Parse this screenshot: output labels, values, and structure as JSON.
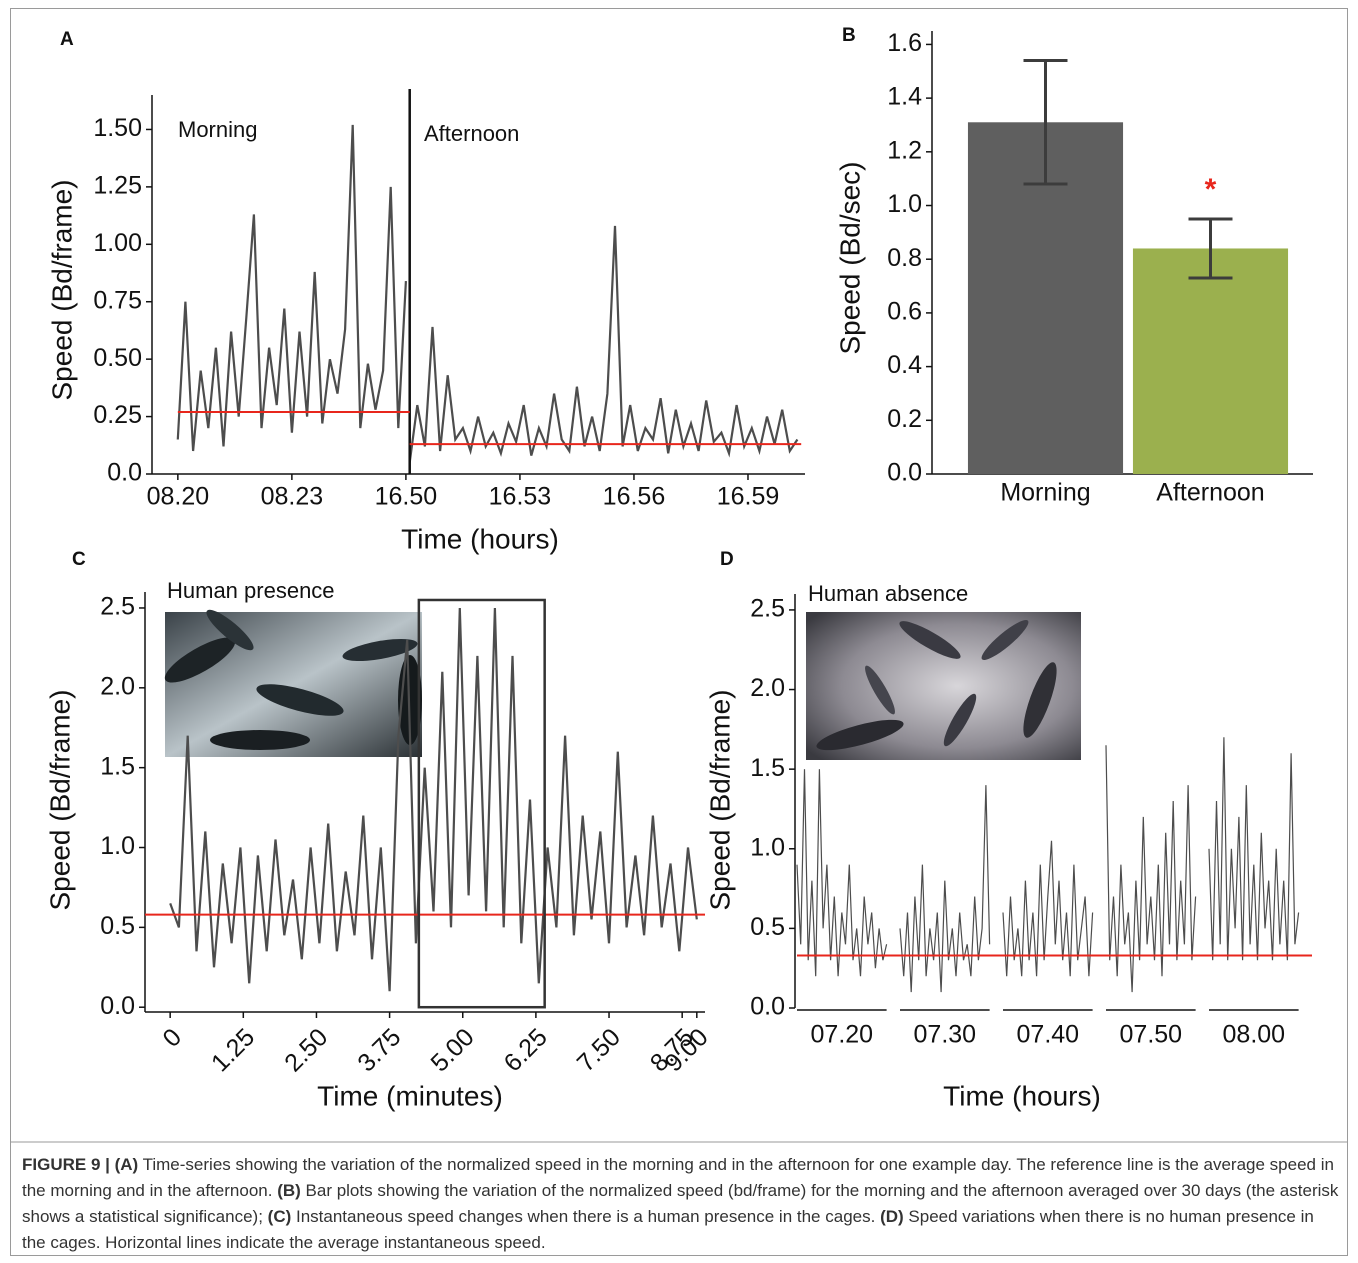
{
  "chart_data": [
    {
      "type": "line",
      "panel_label": "A",
      "ylabel": "Speed (Bd/frame)",
      "xlabel": "Time (hours)",
      "annotations": [
        "Morning",
        "Afternoon"
      ],
      "xlim": [
        -0.68,
        16.5
      ],
      "ylim": [
        0,
        1.65
      ],
      "xticks": [
        {
          "value": 0,
          "label": "08.20"
        },
        {
          "value": 3,
          "label": "08.23"
        },
        {
          "value": 6,
          "label": "16.50"
        },
        {
          "value": 9,
          "label": "16.53"
        },
        {
          "value": 12,
          "label": "16.56"
        },
        {
          "value": 15,
          "label": "16.59"
        }
      ],
      "yticks": [
        {
          "value": 0,
          "label": "0.0"
        },
        0.25,
        {
          "value": 0.5,
          "label": "0.50"
        },
        0.75,
        {
          "value": 1,
          "label": "1.00"
        },
        1.25,
        {
          "value": 1.5,
          "label": "1.50"
        }
      ],
      "divider_x": 6.1,
      "series": [
        {
          "color": "#4d4d4d",
          "x": [
            0,
            0.2,
            0.4,
            0.6,
            0.8,
            1.0,
            1.2,
            1.4,
            1.6,
            1.8,
            2.0,
            2.2,
            2.4,
            2.6,
            2.8,
            3.0,
            3.2,
            3.4,
            3.6,
            3.8,
            4.0,
            4.2,
            4.4,
            4.6,
            4.8,
            5.0,
            5.2,
            5.4,
            5.6,
            5.8,
            6.0
          ],
          "values": [
            0.15,
            0.75,
            0.1,
            0.45,
            0.2,
            0.55,
            0.12,
            0.62,
            0.25,
            0.68,
            1.13,
            0.2,
            0.55,
            0.3,
            0.72,
            0.18,
            0.62,
            0.25,
            0.88,
            0.22,
            0.5,
            0.35,
            0.63,
            1.52,
            0.2,
            0.48,
            0.28,
            0.45,
            1.25,
            0.2,
            0.84
          ]
        },
        {
          "color": "#4d4d4d",
          "x": [
            6.1,
            6.3,
            6.5,
            6.7,
            6.9,
            7.1,
            7.3,
            7.5,
            7.7,
            7.9,
            8.1,
            8.3,
            8.5,
            8.7,
            8.9,
            9.1,
            9.3,
            9.5,
            9.7,
            9.9,
            10.1,
            10.3,
            10.5,
            10.7,
            10.9,
            11.1,
            11.3,
            11.5,
            11.7,
            11.9,
            12.1,
            12.3,
            12.5,
            12.7,
            12.9,
            13.1,
            13.3,
            13.5,
            13.7,
            13.9,
            14.1,
            14.3,
            14.5,
            14.7,
            14.9,
            15.1,
            15.3,
            15.5,
            15.7,
            15.9,
            16.1,
            16.3
          ],
          "values": [
            0.05,
            0.3,
            0.12,
            0.64,
            0.1,
            0.43,
            0.15,
            0.2,
            0.1,
            0.25,
            0.12,
            0.18,
            0.09,
            0.22,
            0.14,
            0.3,
            0.08,
            0.2,
            0.12,
            0.35,
            0.15,
            0.1,
            0.38,
            0.12,
            0.25,
            0.1,
            0.35,
            1.08,
            0.12,
            0.3,
            0.1,
            0.2,
            0.15,
            0.33,
            0.09,
            0.28,
            0.12,
            0.22,
            0.1,
            0.32,
            0.14,
            0.18,
            0.09,
            0.3,
            0.12,
            0.2,
            0.1,
            0.25,
            0.13,
            0.28,
            0.1,
            0.15
          ]
        }
      ],
      "reference_lines": [
        {
          "value": 0.27,
          "x": [
            0,
            6.1
          ],
          "color": "#e8261c"
        },
        {
          "value": 0.13,
          "x": [
            6.1,
            16.4
          ],
          "color": "#e8261c"
        }
      ]
    },
    {
      "type": "bar",
      "panel_label": "B",
      "ylabel": "Speed (Bd/sec)",
      "categories": [
        "Morning",
        "Afternoon"
      ],
      "values": [
        1.31,
        0.84
      ],
      "errors": [
        0.23,
        0.11
      ],
      "colors": [
        "#5f5f5f",
        "#9bb04e"
      ],
      "error_color": "#3c3c3c",
      "ylim": [
        0,
        1.65
      ],
      "yticks": [
        {
          "value": 0,
          "label": "0.0"
        },
        0.2,
        0.4,
        0.6,
        0.8,
        {
          "value": 1,
          "label": "1.0"
        },
        1.2,
        1.4,
        1.6
      ],
      "annotations": [
        {
          "text": "*",
          "color": "#e8261c"
        }
      ]
    },
    {
      "type": "line",
      "panel_label": "C",
      "ylabel": "Speed (Bd/frame)",
      "xlabel": "Time (minutes)",
      "inset_title": "Human presence",
      "xlim": [
        -0.43,
        9.14
      ],
      "ylim": [
        -0.03,
        2.6
      ],
      "xtick_rotation": -45,
      "xticks": [
        0,
        1.25,
        {
          "value": 2.5,
          "label": "2.50"
        },
        3.75,
        {
          "value": 5,
          "label": "5.00"
        },
        6.25,
        {
          "value": 7.5,
          "label": "7.50"
        },
        8.75,
        {
          "value": 9,
          "label": "9.00"
        }
      ],
      "yticks": [
        {
          "value": 0,
          "label": "0.0"
        },
        0.5,
        {
          "value": 1,
          "label": "1.0"
        },
        1.5,
        {
          "value": 2,
          "label": "2.0"
        },
        2.5
      ],
      "highlight_box": {
        "x": [
          4.25,
          6.4
        ],
        "y": [
          0,
          2.55
        ]
      },
      "series": [
        {
          "color": "#4d4d4d",
          "x": [
            0,
            0.15,
            0.3,
            0.45,
            0.6,
            0.75,
            0.9,
            1.05,
            1.2,
            1.35,
            1.5,
            1.65,
            1.8,
            1.95,
            2.1,
            2.25,
            2.4,
            2.55,
            2.7,
            2.85,
            3.0,
            3.15,
            3.3,
            3.45,
            3.6,
            3.75,
            3.9,
            4.05,
            4.2,
            4.35,
            4.5,
            4.65,
            4.8,
            4.95,
            5.1,
            5.25,
            5.4,
            5.55,
            5.7,
            5.85,
            6.0,
            6.15,
            6.3,
            6.45,
            6.6,
            6.75,
            6.9,
            7.05,
            7.2,
            7.35,
            7.5,
            7.65,
            7.8,
            7.95,
            8.1,
            8.25,
            8.4,
            8.55,
            8.7,
            8.85,
            9.0
          ],
          "values": [
            0.65,
            0.5,
            1.7,
            0.35,
            1.1,
            0.25,
            0.9,
            0.4,
            1.0,
            0.15,
            0.95,
            0.35,
            1.05,
            0.45,
            0.8,
            0.3,
            1.0,
            0.4,
            1.15,
            0.35,
            0.85,
            0.45,
            1.2,
            0.3,
            1.0,
            0.1,
            1.7,
            2.3,
            0.4,
            1.5,
            0.6,
            2.1,
            0.5,
            2.5,
            0.7,
            2.2,
            0.6,
            2.5,
            0.5,
            2.2,
            0.4,
            1.3,
            0.15,
            1.0,
            0.5,
            1.7,
            0.45,
            1.2,
            0.55,
            1.1,
            0.4,
            1.6,
            0.5,
            0.95,
            0.45,
            1.2,
            0.5,
            0.9,
            0.35,
            1.0,
            0.55
          ]
        }
      ],
      "reference_lines": [
        {
          "value": 0.58,
          "color": "#e8261c"
        }
      ]
    },
    {
      "type": "line",
      "panel_label": "D",
      "ylabel": "Speed (Bd/frame)",
      "xlabel": "Time (hours)",
      "inset_title": "Human absence",
      "ylim": [
        0,
        2.6
      ],
      "yticks": [
        {
          "value": 0,
          "label": "0.0"
        },
        0.5,
        {
          "value": 1,
          "label": "1.0"
        },
        1.5,
        {
          "value": 2,
          "label": "2.0"
        },
        2.5
      ],
      "segments": [
        {
          "label": "07.20",
          "color": "#4d4d4d",
          "values": [
            0.9,
            0.4,
            1.5,
            0.3,
            0.8,
            0.2,
            1.5,
            0.5,
            0.9,
            0.3,
            0.7,
            0.2,
            0.6,
            0.4,
            0.9,
            0.3,
            0.5,
            0.2,
            0.7,
            0.4,
            0.6,
            0.25,
            0.5,
            0.3,
            0.4
          ]
        },
        {
          "label": "07.30",
          "color": "#4d4d4d",
          "values": [
            0.5,
            0.2,
            0.6,
            0.1,
            0.7,
            0.3,
            0.9,
            0.2,
            0.5,
            0.3,
            0.6,
            0.1,
            0.8,
            0.3,
            0.5,
            0.2,
            0.6,
            0.3,
            0.4,
            0.2,
            0.7,
            0.3,
            0.5,
            1.4,
            0.4
          ]
        },
        {
          "label": "07.40",
          "color": "#4d4d4d",
          "values": [
            0.6,
            0.2,
            0.7,
            0.3,
            0.5,
            0.2,
            0.8,
            0.3,
            0.6,
            0.2,
            0.9,
            0.3,
            0.7,
            1.05,
            0.4,
            0.8,
            0.3,
            0.6,
            0.2,
            0.9,
            0.3,
            0.5,
            0.7,
            0.2,
            0.6
          ]
        },
        {
          "label": "07.50",
          "color": "#4d4d4d",
          "values": [
            1.65,
            0.3,
            0.7,
            0.2,
            0.9,
            0.4,
            0.6,
            0.1,
            0.8,
            0.3,
            1.2,
            0.4,
            0.7,
            0.3,
            0.9,
            0.2,
            1.1,
            0.4,
            1.3,
            0.3,
            0.8,
            0.4,
            1.4,
            0.3,
            0.7
          ]
        },
        {
          "label": "08.00",
          "color": "#4d4d4d",
          "values": [
            1.0,
            0.3,
            1.3,
            0.4,
            1.7,
            0.3,
            1.0,
            0.5,
            1.2,
            0.3,
            1.4,
            0.4,
            0.9,
            0.3,
            1.1,
            0.5,
            0.8,
            0.3,
            1.0,
            0.4,
            0.8,
            0.3,
            1.6,
            0.4,
            0.6
          ]
        }
      ],
      "reference_lines": [
        {
          "value": 0.33,
          "color": "#e8261c"
        }
      ]
    }
  ],
  "caption": [
    {
      "text": "FIGURE 9 | (A)",
      "bold": true
    },
    {
      "text": " Time-series showing the variation of the normalized speed in the morning and in the afternoon for one example day. The reference line is the average speed in the morning and in the afternoon. ",
      "bold": false
    },
    {
      "text": "(B)",
      "bold": true
    },
    {
      "text": " Bar plots showing the variation of the normalized speed (bd/frame) for the morning and the afternoon averaged over 30 days (the asterisk shows a statistical significance); ",
      "bold": false
    },
    {
      "text": "(C)",
      "bold": true
    },
    {
      "text": " Instantaneous speed changes when there is a human presence in the cages. ",
      "bold": false
    },
    {
      "text": "(D)",
      "bold": true
    },
    {
      "text": " Speed variations when there is no human presence in the cages. Horizontal lines indicate the average instantaneous speed.",
      "bold": false
    }
  ]
}
